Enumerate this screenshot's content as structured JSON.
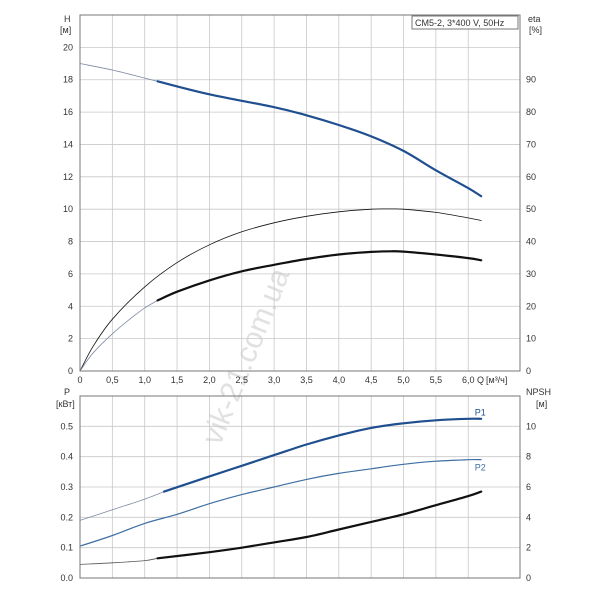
{
  "watermark": "vik-21.com.ua",
  "chart_data": [
    {
      "type": "line",
      "annotation": "CM5-2, 3*400 V, 50Hz",
      "left_axis": {
        "label": "H",
        "unit": "[м]",
        "min": 0,
        "max": 22,
        "ticks": [
          0,
          2,
          4,
          6,
          8,
          10,
          12,
          14,
          16,
          18,
          20
        ]
      },
      "right_axis": {
        "label": "eta",
        "unit": "[%]",
        "min": 0,
        "max": 110,
        "ticks": [
          0,
          10,
          20,
          30,
          40,
          50,
          60,
          70,
          80,
          90
        ]
      },
      "x_axis": {
        "label": "Q",
        "unit": "[м³/ч]",
        "min": 0,
        "max": 6.8,
        "ticks": [
          0,
          0.5,
          1.0,
          1.5,
          2.0,
          2.5,
          3.0,
          3.5,
          4.0,
          4.5,
          5.0,
          5.5,
          6.0
        ],
        "tick_labels": [
          "0",
          "0,5",
          "1,0",
          "1,5",
          "2,0",
          "2,5",
          "3,0",
          "3,5",
          "4,0",
          "4,5",
          "5,0",
          "5,5",
          "6,0"
        ]
      },
      "grid": true,
      "series": [
        {
          "axis": "left",
          "color": "#7e8aa3",
          "style": "thin",
          "x": [
            0,
            0.5,
            1.0,
            1.2
          ],
          "y": [
            19.0,
            18.6,
            18.1,
            17.9
          ]
        },
        {
          "axis": "left",
          "color": "#1f4f8f",
          "style": "thick",
          "x": [
            1.2,
            2.0,
            3.0,
            3.5,
            4.0,
            4.5,
            5.0,
            5.5,
            6.0,
            6.2
          ],
          "y": [
            17.9,
            17.1,
            16.3,
            15.8,
            15.2,
            14.5,
            13.6,
            12.4,
            11.3,
            10.8
          ]
        },
        {
          "axis": "right",
          "color": "#111111",
          "style": "thin",
          "x": [
            0,
            0.2,
            0.5,
            1.0,
            1.5,
            2.0,
            2.5,
            3.0,
            3.5,
            4.0,
            4.5,
            4.8,
            5.0,
            5.5,
            6.0,
            6.2
          ],
          "y": [
            0,
            7.5,
            16,
            26,
            33.5,
            39,
            43,
            45.8,
            47.8,
            49.2,
            50,
            50.1,
            50,
            49,
            47.3,
            46.5
          ]
        },
        {
          "axis": "right",
          "color": "#7e8aa3",
          "style": "thin",
          "x": [
            0,
            0.2,
            0.5,
            0.8,
            1.0,
            1.2
          ],
          "y": [
            0,
            5.5,
            11.5,
            16.5,
            19.5,
            21.8
          ]
        },
        {
          "axis": "right",
          "color": "#111111",
          "style": "thick",
          "x": [
            1.2,
            1.5,
            2.0,
            2.5,
            3.0,
            3.5,
            4.0,
            4.5,
            4.8,
            5.0,
            5.5,
            6.0,
            6.2
          ],
          "y": [
            21.8,
            24.5,
            28,
            30.8,
            32.8,
            34.6,
            36,
            36.8,
            37,
            36.9,
            36,
            34.9,
            34.2
          ]
        }
      ]
    },
    {
      "type": "line",
      "left_axis": {
        "label": "P",
        "unit": "[кВт]",
        "min": 0,
        "max": 0.6,
        "ticks": [
          0.0,
          0.1,
          0.2,
          0.3,
          0.4,
          0.5
        ],
        "tick_labels": [
          "0.0",
          "0.1",
          "0.2",
          "0.3",
          "0.4",
          "0.5"
        ]
      },
      "right_axis": {
        "label": "NPSH",
        "unit": "[м]",
        "min": 0,
        "max": 12,
        "ticks": [
          0,
          2,
          4,
          6,
          8,
          10
        ]
      },
      "x_axis": {
        "min": 0,
        "max": 6.8,
        "ticks": [
          0,
          0.5,
          1.0,
          1.5,
          2.0,
          2.5,
          3.0,
          3.5,
          4.0,
          4.5,
          5.0,
          5.5,
          6.0
        ]
      },
      "grid": true,
      "series": [
        {
          "name": "P1",
          "axis": "left",
          "color": "#7e8aa3",
          "style": "thin",
          "x": [
            0,
            0.5,
            1.0,
            1.3
          ],
          "y": [
            0.19,
            0.225,
            0.26,
            0.285
          ]
        },
        {
          "name": "P1",
          "axis": "left",
          "color": "#1f4f8f",
          "style": "thick",
          "x": [
            1.3,
            2.0,
            2.5,
            3.0,
            3.5,
            4.0,
            4.5,
            5.0,
            5.5,
            6.0,
            6.2
          ],
          "y": [
            0.285,
            0.335,
            0.37,
            0.405,
            0.44,
            0.47,
            0.495,
            0.51,
            0.52,
            0.525,
            0.525
          ]
        },
        {
          "name": "P2",
          "axis": "left",
          "color": "#3f6ea3",
          "style": "medium",
          "x": [
            0,
            0.5,
            1.0,
            1.5,
            2.0,
            2.5,
            3.0,
            3.5,
            4.0,
            4.5,
            5.0,
            5.5,
            6.0,
            6.2
          ],
          "y": [
            0.105,
            0.14,
            0.18,
            0.21,
            0.245,
            0.275,
            0.3,
            0.325,
            0.345,
            0.36,
            0.375,
            0.385,
            0.39,
            0.39
          ]
        },
        {
          "axis": "right",
          "color": "#555555",
          "style": "thin",
          "x": [
            0,
            0.5,
            1.0,
            1.2
          ],
          "y": [
            0.9,
            1.0,
            1.15,
            1.3
          ]
        },
        {
          "axis": "right",
          "color": "#111111",
          "style": "thick",
          "x": [
            1.2,
            2.0,
            2.5,
            3.0,
            3.5,
            4.0,
            4.5,
            5.0,
            5.5,
            6.0,
            6.2
          ],
          "y": [
            1.3,
            1.7,
            2.0,
            2.35,
            2.7,
            3.2,
            3.7,
            4.2,
            4.8,
            5.4,
            5.7
          ]
        }
      ],
      "labels": [
        {
          "text": "P1",
          "color": "#1f4f8f",
          "x": 6.1,
          "y": 0.535
        },
        {
          "text": "P2",
          "color": "#3f6ea3",
          "x": 6.1,
          "y": 0.355
        }
      ]
    }
  ]
}
